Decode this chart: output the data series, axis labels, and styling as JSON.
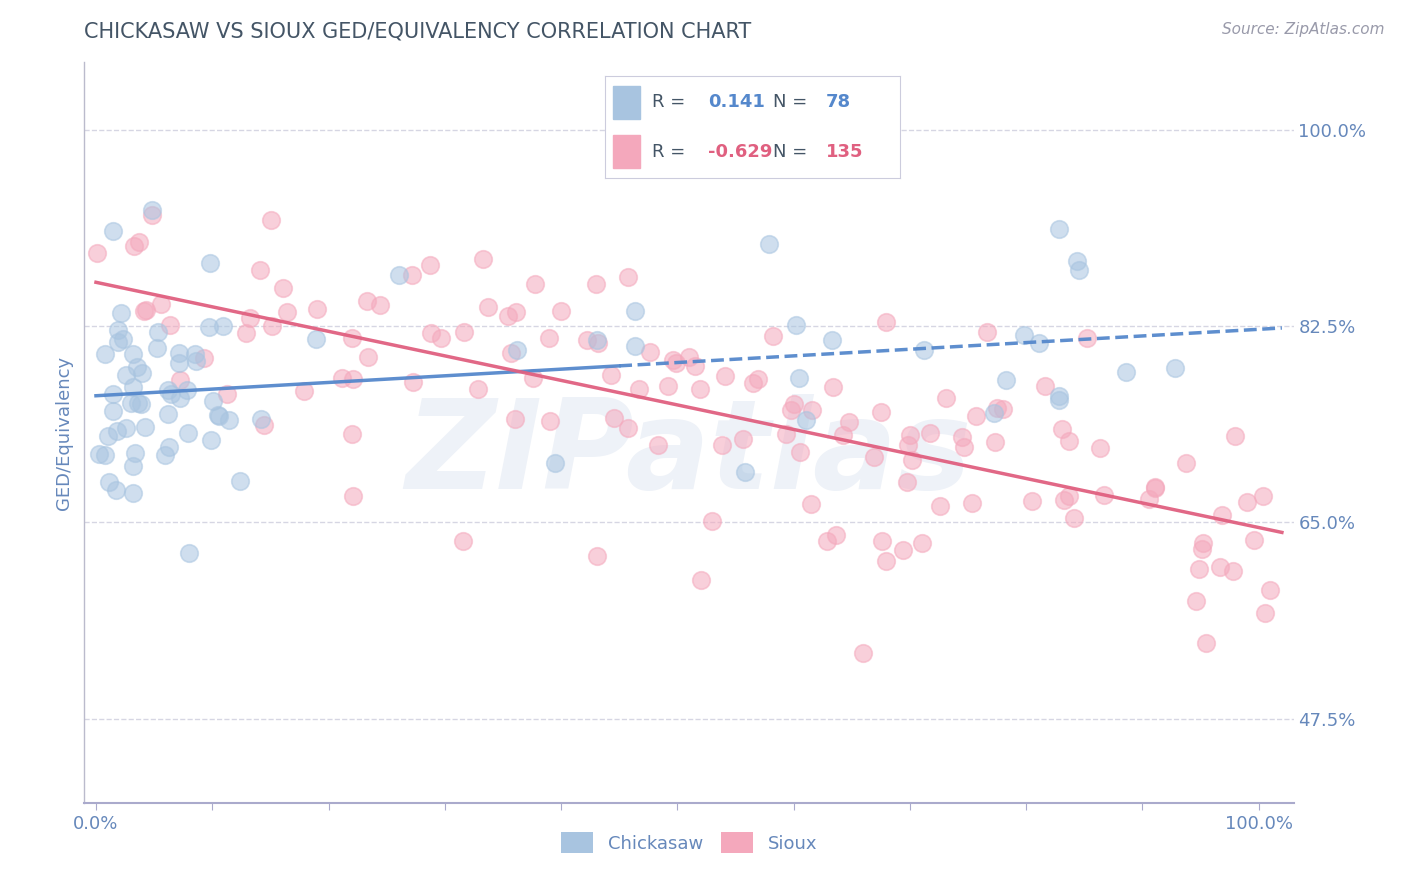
{
  "title": "CHICKASAW VS SIOUX GED/EQUIVALENCY CORRELATION CHART",
  "source": "Source: ZipAtlas.com",
  "ylabel": "GED/Equivalency",
  "chickasaw_R": 0.141,
  "chickasaw_N": 78,
  "sioux_R": -0.629,
  "sioux_N": 135,
  "chickasaw_color": "#A8C4E0",
  "sioux_color": "#F4A8BC",
  "chickasaw_line_color": "#5588CC",
  "sioux_line_color": "#E06080",
  "background_color": "#FFFFFF",
  "watermark_color": "#EEF2F8",
  "title_color": "#445566",
  "axis_label_color": "#6688BB",
  "gridline_color": "#CCCCDD",
  "legend_text_color": "#445566",
  "source_color": "#999AAA",
  "xlim": [
    0.0,
    1.0
  ],
  "ylim": [
    0.4,
    1.05
  ],
  "ytick_vals": [
    0.475,
    0.65,
    0.825,
    1.0
  ],
  "ytick_labels": [
    "47.5%",
    "65.0%",
    "82.5%",
    "100.0%"
  ]
}
